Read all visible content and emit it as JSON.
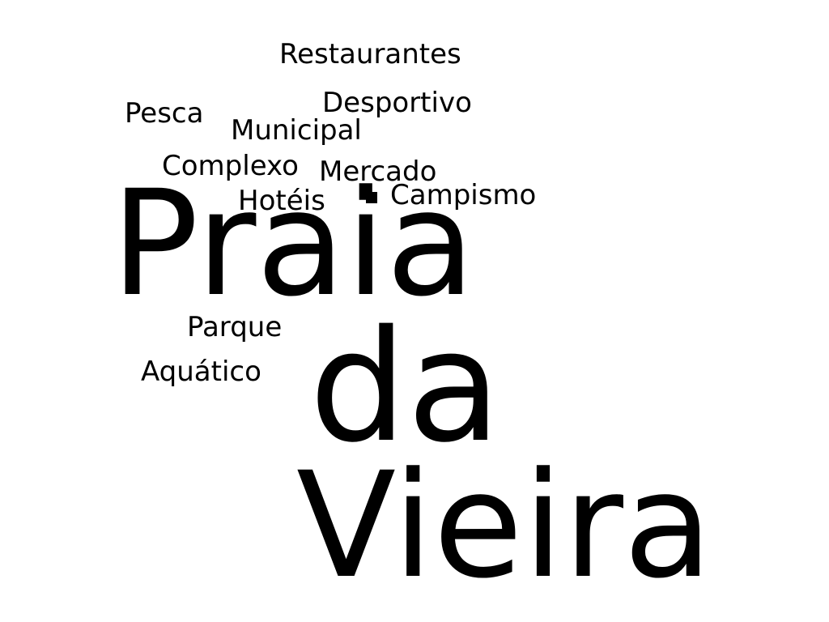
{
  "words": {
    "restaurantes": "Restaurantes",
    "desportivo": "Desportivo",
    "pesca": "Pesca",
    "municipal": "Municipal",
    "complexo": "Complexo",
    "mercado": "Mercado",
    "hoteis": "Hotéis",
    "campismo": "Campismo",
    "parque": "Parque",
    "aquatico": "Aquático",
    "praia": "Praia",
    "da": "da",
    "vieira": "Vieira"
  },
  "colors": {
    "background": "#ffffff",
    "text": "#000000"
  }
}
